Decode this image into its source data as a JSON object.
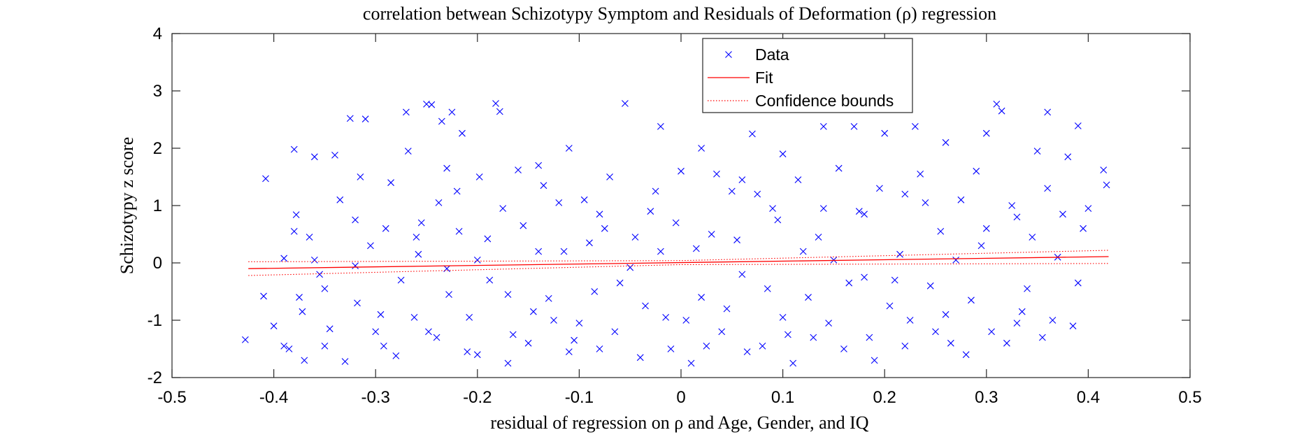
{
  "chart_data": {
    "type": "scatter",
    "title": "correlation betwean Schizotypy Symptom and Residuals of Deformation (ρ) regression",
    "xlabel": "residual of regression on ρ and Age, Gender, and IQ",
    "ylabel": "Schizotypy z score",
    "xlim": [
      -0.5,
      0.5
    ],
    "ylim": [
      -2,
      4
    ],
    "xticks": [
      -0.5,
      -0.4,
      -0.3,
      -0.2,
      -0.1,
      0,
      0.1,
      0.2,
      0.3,
      0.4,
      0.5
    ],
    "xtick_labels": [
      "-0.5",
      "-0.4",
      "-0.3",
      "-0.2",
      "-0.1",
      "0",
      "0.1",
      "0.2",
      "0.3",
      "0.4",
      "0.5"
    ],
    "yticks": [
      -2,
      -1,
      0,
      1,
      2,
      3,
      4
    ],
    "ytick_labels": [
      "-2",
      "-1",
      "0",
      "1",
      "2",
      "3",
      "4"
    ],
    "grid": false,
    "legend_position": "top-center",
    "legend": [
      {
        "label": "Data",
        "style": "marker-x",
        "color": "#0000ff"
      },
      {
        "label": "Fit",
        "style": "solid-line",
        "color": "#ff0000"
      },
      {
        "label": "Confidence bounds",
        "style": "dotted-line",
        "color": "#ff0000"
      }
    ],
    "series": [
      {
        "name": "Data",
        "marker": "x",
        "color": "#0000ff",
        "points": [
          [
            -0.428,
            -1.34
          ],
          [
            -0.41,
            -0.58
          ],
          [
            -0.408,
            1.47
          ],
          [
            -0.4,
            -1.1
          ],
          [
            -0.39,
            0.08
          ],
          [
            -0.385,
            -1.5
          ],
          [
            -0.38,
            1.98
          ],
          [
            -0.378,
            0.84
          ],
          [
            -0.375,
            -0.6
          ],
          [
            -0.37,
            -1.7
          ],
          [
            -0.365,
            0.45
          ],
          [
            -0.36,
            1.85
          ],
          [
            -0.355,
            -0.2
          ],
          [
            -0.35,
            -1.45
          ],
          [
            -0.34,
            1.88
          ],
          [
            -0.33,
            -1.72
          ],
          [
            -0.325,
            2.52
          ],
          [
            -0.32,
            -0.05
          ],
          [
            -0.315,
            1.5
          ],
          [
            -0.31,
            2.51
          ],
          [
            -0.3,
            -1.2
          ],
          [
            -0.29,
            0.6
          ],
          [
            -0.28,
            -1.62
          ],
          [
            -0.27,
            2.63
          ],
          [
            -0.262,
            -0.95
          ],
          [
            -0.255,
            0.7
          ],
          [
            -0.25,
            2.77
          ],
          [
            -0.245,
            2.76
          ],
          [
            -0.24,
            -1.3
          ],
          [
            -0.235,
            2.47
          ],
          [
            -0.23,
            -0.1
          ],
          [
            -0.225,
            2.63
          ],
          [
            -0.22,
            1.25
          ],
          [
            -0.215,
            2.26
          ],
          [
            -0.21,
            -1.55
          ],
          [
            -0.2,
            -1.6
          ],
          [
            -0.19,
            0.42
          ],
          [
            -0.182,
            2.78
          ],
          [
            -0.178,
            2.64
          ],
          [
            -0.17,
            -1.75
          ],
          [
            -0.16,
            1.62
          ],
          [
            -0.15,
            -1.4
          ],
          [
            -0.14,
            0.2
          ],
          [
            -0.13,
            -0.62
          ],
          [
            -0.12,
            1.05
          ],
          [
            -0.11,
            2.0
          ],
          [
            -0.1,
            -1.05
          ],
          [
            -0.09,
            0.35
          ],
          [
            -0.08,
            -1.5
          ],
          [
            -0.07,
            1.5
          ],
          [
            -0.055,
            2.78
          ],
          [
            -0.05,
            -0.08
          ],
          [
            -0.04,
            -1.65
          ],
          [
            -0.03,
            0.9
          ],
          [
            -0.02,
            2.38
          ],
          [
            -0.01,
            -1.5
          ],
          [
            0.0,
            1.6
          ],
          [
            0.01,
            -1.75
          ],
          [
            0.02,
            2.0
          ],
          [
            0.03,
            0.5
          ],
          [
            0.04,
            -1.2
          ],
          [
            0.05,
            1.25
          ],
          [
            0.06,
            -0.2
          ],
          [
            0.07,
            2.25
          ],
          [
            0.08,
            -1.45
          ],
          [
            0.09,
            0.95
          ],
          [
            0.1,
            1.9
          ],
          [
            0.11,
            -1.75
          ],
          [
            0.12,
            0.2
          ],
          [
            0.13,
            -1.3
          ],
          [
            0.14,
            2.38
          ],
          [
            0.15,
            0.05
          ],
          [
            0.16,
            -1.5
          ],
          [
            0.17,
            2.38
          ],
          [
            0.18,
            0.85
          ],
          [
            0.19,
            -1.7
          ],
          [
            0.2,
            2.26
          ],
          [
            0.21,
            -0.3
          ],
          [
            0.22,
            -1.45
          ],
          [
            0.23,
            2.38
          ],
          [
            0.24,
            1.05
          ],
          [
            0.25,
            -1.2
          ],
          [
            0.26,
            2.1
          ],
          [
            0.27,
            0.05
          ],
          [
            0.28,
            -1.6
          ],
          [
            0.29,
            1.6
          ],
          [
            0.3,
            2.26
          ],
          [
            0.31,
            2.77
          ],
          [
            0.315,
            2.65
          ],
          [
            0.32,
            -1.4
          ],
          [
            0.33,
            0.8
          ],
          [
            0.34,
            -0.45
          ],
          [
            0.35,
            1.95
          ],
          [
            0.36,
            2.63
          ],
          [
            0.365,
            -1.0
          ],
          [
            0.37,
            0.1
          ],
          [
            0.38,
            1.85
          ],
          [
            0.385,
            -1.1
          ],
          [
            0.39,
            2.39
          ],
          [
            0.395,
            0.6
          ],
          [
            0.4,
            0.95
          ],
          [
            0.415,
            1.62
          ],
          [
            0.418,
            1.36
          ],
          [
            -0.39,
            -1.45
          ],
          [
            -0.372,
            -0.85
          ],
          [
            -0.36,
            0.05
          ],
          [
            -0.345,
            -1.15
          ],
          [
            -0.335,
            1.1
          ],
          [
            -0.318,
            -0.7
          ],
          [
            -0.305,
            0.3
          ],
          [
            -0.292,
            -1.45
          ],
          [
            -0.285,
            1.4
          ],
          [
            -0.275,
            -0.3
          ],
          [
            -0.268,
            1.95
          ],
          [
            -0.258,
            0.15
          ],
          [
            -0.248,
            -1.2
          ],
          [
            -0.238,
            1.05
          ],
          [
            -0.228,
            -0.55
          ],
          [
            -0.218,
            0.55
          ],
          [
            -0.208,
            -0.95
          ],
          [
            -0.198,
            1.5
          ],
          [
            -0.188,
            -0.3
          ],
          [
            -0.175,
            0.95
          ],
          [
            -0.165,
            -1.25
          ],
          [
            -0.155,
            0.65
          ],
          [
            -0.145,
            -0.85
          ],
          [
            -0.135,
            1.35
          ],
          [
            -0.125,
            -1.0
          ],
          [
            -0.115,
            0.2
          ],
          [
            -0.105,
            -1.35
          ],
          [
            -0.095,
            1.1
          ],
          [
            -0.085,
            -0.5
          ],
          [
            -0.075,
            0.6
          ],
          [
            -0.065,
            -1.2
          ],
          [
            -0.045,
            0.45
          ],
          [
            -0.035,
            -0.75
          ],
          [
            -0.025,
            1.25
          ],
          [
            -0.015,
            -0.95
          ],
          [
            -0.005,
            0.7
          ],
          [
            0.005,
            -1.0
          ],
          [
            0.015,
            0.25
          ],
          [
            0.025,
            -1.45
          ],
          [
            0.035,
            1.55
          ],
          [
            0.045,
            -0.8
          ],
          [
            0.055,
            0.4
          ],
          [
            0.065,
            -1.55
          ],
          [
            0.075,
            1.2
          ],
          [
            0.085,
            -0.45
          ],
          [
            0.095,
            0.75
          ],
          [
            0.105,
            -1.25
          ],
          [
            0.115,
            1.45
          ],
          [
            0.125,
            -0.6
          ],
          [
            0.135,
            0.45
          ],
          [
            0.145,
            -1.05
          ],
          [
            0.155,
            1.65
          ],
          [
            0.165,
            -0.35
          ],
          [
            0.175,
            0.9
          ],
          [
            0.185,
            -1.3
          ],
          [
            0.195,
            1.3
          ],
          [
            0.205,
            -0.75
          ],
          [
            0.215,
            0.15
          ],
          [
            0.225,
            -1.0
          ],
          [
            0.235,
            1.55
          ],
          [
            0.245,
            -0.4
          ],
          [
            0.255,
            0.55
          ],
          [
            0.265,
            -1.4
          ],
          [
            0.275,
            1.1
          ],
          [
            0.285,
            -0.65
          ],
          [
            0.295,
            0.3
          ],
          [
            0.305,
            -1.2
          ],
          [
            0.325,
            1.0
          ],
          [
            0.335,
            -0.85
          ],
          [
            0.345,
            0.45
          ],
          [
            0.355,
            -1.3
          ],
          [
            0.375,
            0.85
          ],
          [
            -0.38,
            0.55
          ],
          [
            -0.35,
            -0.45
          ],
          [
            -0.32,
            0.75
          ],
          [
            -0.295,
            -0.9
          ],
          [
            -0.26,
            0.45
          ],
          [
            -0.23,
            1.65
          ],
          [
            -0.2,
            0.05
          ],
          [
            -0.17,
            -0.55
          ],
          [
            -0.14,
            1.7
          ],
          [
            -0.11,
            -1.55
          ],
          [
            -0.08,
            0.85
          ],
          [
            -0.06,
            -0.35
          ],
          [
            -0.02,
            0.2
          ],
          [
            0.02,
            -0.6
          ],
          [
            0.06,
            1.45
          ],
          [
            0.1,
            -0.95
          ],
          [
            0.14,
            0.95
          ],
          [
            0.18,
            -0.25
          ],
          [
            0.22,
            1.2
          ],
          [
            0.26,
            -0.9
          ],
          [
            0.3,
            0.6
          ],
          [
            0.33,
            -1.05
          ],
          [
            0.36,
            1.3
          ],
          [
            0.39,
            -0.35
          ]
        ]
      },
      {
        "name": "Fit",
        "line": "solid",
        "color": "#ff0000",
        "x": [
          -0.425,
          0.42
        ],
        "y": [
          -0.1,
          0.11
        ]
      },
      {
        "name": "Confidence bounds",
        "line": "dotted",
        "color": "#ff0000",
        "upper": {
          "x": [
            -0.425,
            0.0,
            0.42
          ],
          "y": [
            0.02,
            0.04,
            0.22
          ]
        },
        "lower": {
          "x": [
            -0.425,
            0.0,
            0.42
          ],
          "y": [
            -0.22,
            -0.03,
            -0.01
          ]
        }
      }
    ]
  }
}
